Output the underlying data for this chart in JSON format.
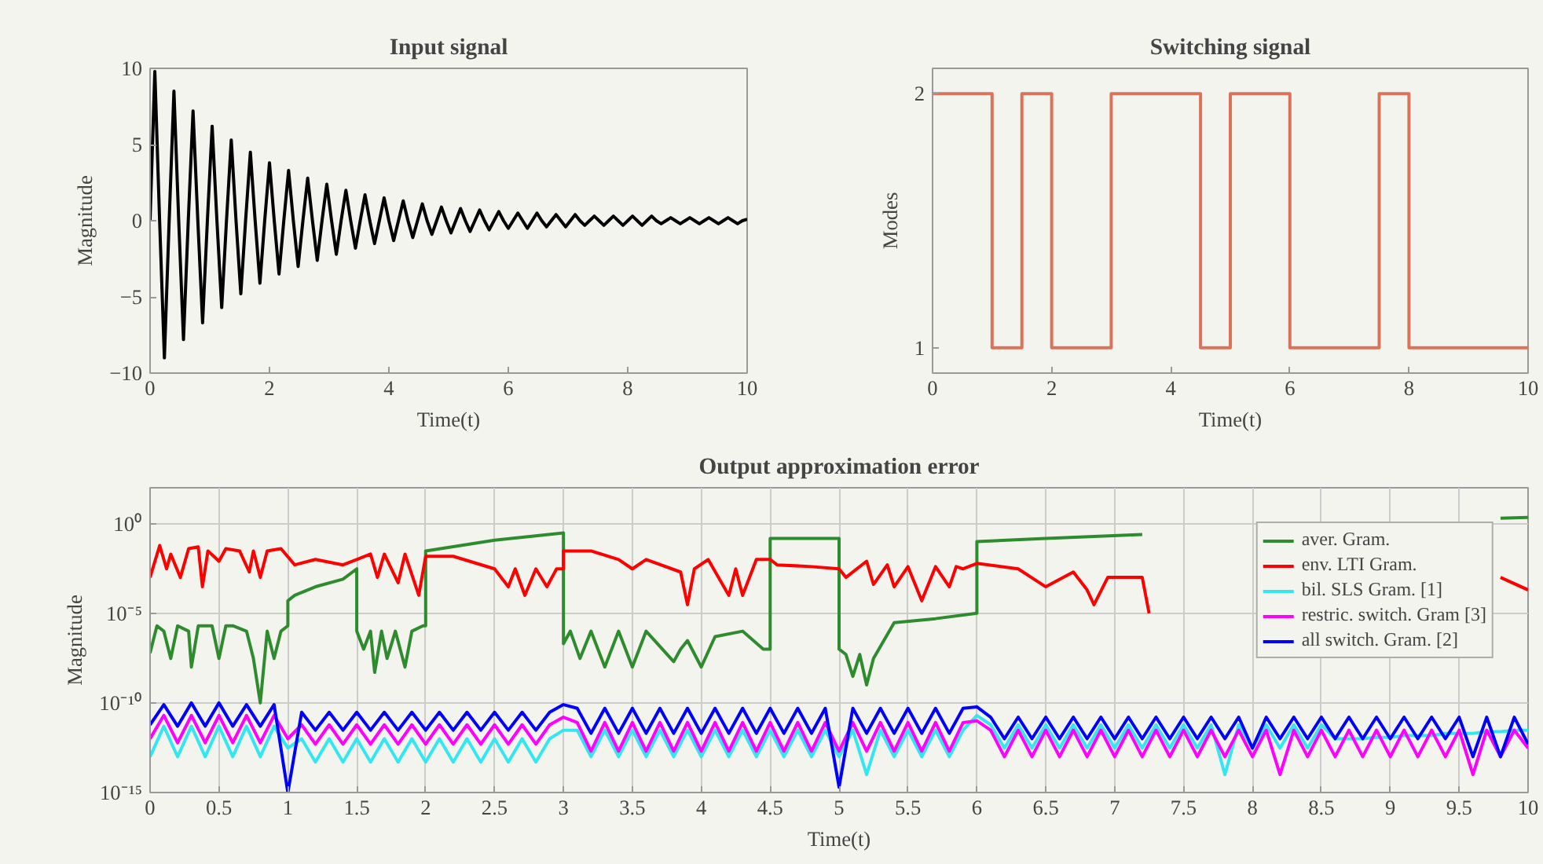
{
  "chart_data": [
    {
      "type": "line",
      "title": "Input signal",
      "xlabel": "Time(t)",
      "ylabel": "Magnitude",
      "xlim": [
        0,
        10
      ],
      "ylim": [
        -10,
        10
      ],
      "xticks": [
        0,
        2,
        4,
        6,
        8,
        10
      ],
      "yticks": [
        {
          "value": -10,
          "label": "−10"
        },
        {
          "value": -5,
          "label": "−5"
        },
        0,
        5,
        10
      ],
      "grid": false,
      "legend": false,
      "x": [
        0,
        0.08,
        0.16,
        0.24,
        0.32,
        0.4,
        0.48,
        0.56,
        0.64,
        0.72,
        0.8,
        0.88,
        0.96,
        1.04,
        1.12,
        1.2,
        1.28,
        1.36,
        1.44,
        1.52,
        1.6,
        1.68,
        1.76,
        1.84,
        1.92,
        2,
        2.08,
        2.16,
        2.24,
        2.32,
        2.4,
        2.48,
        2.56,
        2.64,
        2.72,
        2.8,
        2.88,
        2.96,
        3.04,
        3.12,
        3.2,
        3.28,
        3.36,
        3.44,
        3.52,
        3.6,
        3.68,
        3.76,
        3.84,
        3.92,
        4,
        4.08,
        4.16,
        4.24,
        4.32,
        4.4,
        4.48,
        4.56,
        4.64,
        4.72,
        4.8,
        4.88,
        4.96,
        5.04,
        5.12,
        5.2,
        5.28,
        5.36,
        5.44,
        5.52,
        5.6,
        5.68,
        5.76,
        5.84,
        5.92,
        6,
        6.08,
        6.16,
        6.24,
        6.32,
        6.4,
        6.48,
        6.56,
        6.64,
        6.72,
        6.8,
        6.88,
        6.96,
        7.04,
        7.12,
        7.2,
        7.28,
        7.36,
        7.44,
        7.52,
        7.6,
        7.68,
        7.76,
        7.84,
        7.92,
        8,
        8.08,
        8.16,
        8.24,
        8.32,
        8.4,
        8.48,
        8.56,
        8.64,
        8.72,
        8.8,
        8.88,
        8.96,
        9.04,
        9.12,
        9.2,
        9.28,
        9.36,
        9.44,
        9.52,
        9.6,
        9.68,
        9.76,
        9.84,
        9.92,
        10
      ],
      "series": [
        {
          "color": "#000000",
          "values": [
            0,
            9.8,
            0,
            -9.0,
            0,
            8.5,
            0,
            -7.8,
            0,
            7.2,
            0,
            -6.7,
            0,
            6.2,
            0,
            -5.7,
            0,
            5.3,
            0,
            -4.8,
            0,
            4.5,
            0,
            -4.1,
            0,
            3.8,
            0,
            -3.5,
            0,
            3.3,
            0,
            -3.0,
            0,
            2.8,
            0,
            -2.6,
            0,
            2.4,
            0,
            -2.2,
            0,
            2.0,
            0,
            -1.8,
            0,
            1.7,
            0,
            -1.5,
            0,
            1.5,
            0,
            -1.3,
            0,
            1.3,
            0,
            -1.1,
            0,
            1.1,
            0,
            -0.9,
            0,
            0.9,
            0,
            -0.8,
            0,
            0.8,
            0,
            -0.7,
            0,
            0.7,
            0,
            -0.6,
            0,
            0.6,
            0,
            -0.5,
            0,
            0.5,
            0,
            -0.5,
            0,
            0.5,
            0,
            -0.4,
            0,
            0.4,
            0,
            -0.4,
            0,
            0.4,
            0,
            -0.3,
            0,
            0.3,
            0,
            -0.3,
            0,
            0.3,
            0,
            -0.3,
            0,
            0.3,
            0,
            -0.3,
            0,
            0.3,
            0,
            -0.2,
            0,
            0.2,
            0,
            -0.2,
            0,
            0.2,
            0,
            -0.2,
            0,
            0.2,
            0,
            -0.2,
            0,
            0.2,
            0,
            -0.2,
            0,
            0.1
          ]
        }
      ]
    },
    {
      "type": "step",
      "title": "Switching signal",
      "xlabel": "Time(t)",
      "ylabel": "Modes",
      "xlim": [
        0,
        10
      ],
      "ylim": [
        0.9,
        2.1
      ],
      "xticks": [
        0,
        2,
        4,
        6,
        8,
        10
      ],
      "yticks": [
        1,
        2
      ],
      "grid": false,
      "legend": false,
      "x": [
        0,
        1,
        1.5,
        2,
        3,
        4.5,
        5,
        6,
        7.5,
        8,
        10
      ],
      "series": [
        {
          "color": "#d9735a",
          "values": [
            2,
            1,
            2,
            1,
            2,
            1,
            2,
            1,
            2,
            1,
            1
          ]
        }
      ]
    },
    {
      "type": "line",
      "title": "Output approximation error",
      "xlabel": "Time(t)",
      "ylabel": "Magnitude",
      "log": "y",
      "xlim": [
        0,
        10
      ],
      "ylim": [
        1e-15,
        100
      ],
      "xticks": [
        0,
        0.5,
        1,
        1.5,
        2,
        2.5,
        3,
        3.5,
        4,
        4.5,
        5,
        5.5,
        6,
        6.5,
        7,
        7.5,
        8,
        8.5,
        9,
        9.5,
        10
      ],
      "yticks": [
        {
          "value": 1e-15,
          "label": "10⁻¹⁵"
        },
        {
          "value": 1e-10,
          "label": "10⁻¹⁰"
        },
        {
          "value": 1e-05,
          "label": "10⁻⁵"
        },
        {
          "value": 1,
          "label": "10⁰"
        }
      ],
      "grid": true,
      "legend": "top right",
      "x": [
        0,
        0.1,
        0.2,
        0.3,
        0.4,
        0.5,
        0.6,
        0.7,
        0.8,
        0.9,
        1,
        1.1,
        1.2,
        1.3,
        1.4,
        1.5,
        1.6,
        1.7,
        1.8,
        1.9,
        2,
        2.1,
        2.2,
        2.3,
        2.4,
        2.5,
        2.6,
        2.7,
        2.8,
        2.9,
        3,
        3.1,
        3.2,
        3.3,
        3.4,
        3.5,
        3.6,
        3.7,
        3.8,
        3.9,
        4,
        4.1,
        4.2,
        4.3,
        4.4,
        4.5,
        4.6,
        4.7,
        4.8,
        4.9,
        5,
        5.1,
        5.2,
        5.3,
        5.4,
        5.5,
        5.6,
        5.7,
        5.8,
        5.9,
        6,
        6.1,
        6.2,
        6.3,
        6.4,
        6.5,
        6.6,
        6.7,
        6.8,
        6.9,
        7,
        7.1,
        7.2,
        7.3,
        7.4,
        7.5,
        7.6,
        7.7,
        7.8,
        7.9,
        8,
        8.1,
        8.2,
        8.3,
        8.4,
        8.5,
        8.6,
        8.7,
        8.8,
        8.9,
        9,
        9.1,
        9.2,
        9.3,
        9.4,
        9.5,
        9.6,
        9.7,
        9.8,
        9.9,
        10
      ],
      "series": [
        {
          "name": "aver. Gram.",
          "color": "#2e8b2e",
          "x": [
            0,
            0.05,
            0.1,
            0.15,
            0.2,
            0.28,
            0.3,
            0.35,
            0.45,
            0.5,
            0.55,
            0.6,
            0.7,
            0.75,
            0.8,
            0.85,
            0.9,
            0.95,
            1.0,
            1.0,
            1.05,
            1.2,
            1.4,
            1.5,
            1.5,
            1.55,
            1.6,
            1.63,
            1.68,
            1.72,
            1.78,
            1.85,
            1.9,
            1.98,
            2.0,
            2.0,
            2.5,
            3.0,
            3.0,
            3.05,
            3.12,
            3.2,
            3.3,
            3.4,
            3.5,
            3.6,
            3.8,
            3.85,
            3.9,
            4.0,
            4.1,
            4.3,
            4.45,
            4.5,
            4.5,
            5.0,
            5.0,
            5.05,
            5.1,
            5.15,
            5.2,
            5.25,
            5.4,
            5.7,
            6.0,
            6.0,
            6.5,
            7.2,
            8.5,
            9.8,
            10
          ],
          "values": [
            6e-08,
            2e-06,
            1e-06,
            3e-08,
            2e-06,
            1e-06,
            1e-08,
            2e-06,
            2e-06,
            3e-08,
            2e-06,
            2e-06,
            1e-06,
            3e-08,
            1e-10,
            1e-06,
            3e-08,
            1e-06,
            2e-06,
            5e-05,
            0.0001,
            0.0003,
            0.0008,
            0.003,
            1e-06,
            1e-07,
            1e-06,
            5e-09,
            1e-06,
            3e-08,
            1e-06,
            1e-08,
            1e-06,
            2e-06,
            2e-06,
            0.03,
            0.12,
            0.3,
            2e-07,
            1e-06,
            3e-08,
            1e-06,
            1e-08,
            1e-06,
            1e-08,
            1e-06,
            2e-08,
            1e-07,
            3e-07,
            1e-08,
            5e-07,
            1e-06,
            1e-07,
            1e-07,
            0.15,
            0.15,
            1e-07,
            5e-08,
            3e-09,
            5e-08,
            1e-09,
            3e-08,
            3e-06,
            5e-06,
            1e-05,
            0.1,
            0.15,
            0.25,
            null,
            2,
            2.2
          ]
        },
        {
          "name": "env. LTI Gram.",
          "color": "#ff0000",
          "x": [
            0,
            0.07,
            0.12,
            0.15,
            0.22,
            0.28,
            0.35,
            0.38,
            0.42,
            0.5,
            0.55,
            0.65,
            0.72,
            0.75,
            0.8,
            0.85,
            0.95,
            1.05,
            1.2,
            1.4,
            1.5,
            1.6,
            1.65,
            1.7,
            1.8,
            1.85,
            1.95,
            2.0,
            2.2,
            2.5,
            2.6,
            2.65,
            2.72,
            2.8,
            2.88,
            2.95,
            3.0,
            3.0,
            3.2,
            3.4,
            3.5,
            3.6,
            3.85,
            3.9,
            3.95,
            4.05,
            4.2,
            4.25,
            4.3,
            4.4,
            4.5,
            4.55,
            4.8,
            5.0,
            5.05,
            5.2,
            5.25,
            5.35,
            5.4,
            5.5,
            5.6,
            5.7,
            5.8,
            5.85,
            5.9,
            6.0,
            6.3,
            6.5,
            6.7,
            6.8,
            6.85,
            6.95,
            7.2,
            7.25,
            8.5,
            9.8,
            10
          ],
          "values": [
            0.001,
            0.06,
            0.003,
            0.02,
            0.001,
            0.04,
            0.05,
            0.0003,
            0.03,
            0.008,
            0.04,
            0.03,
            0.002,
            0.03,
            0.001,
            0.03,
            0.04,
            0.005,
            0.01,
            0.005,
            0.01,
            0.02,
            0.001,
            0.02,
            0.0005,
            0.02,
            0.0001,
            0.015,
            0.015,
            0.003,
            0.0003,
            0.003,
            0.0001,
            0.003,
            0.0003,
            0.003,
            0.003,
            0.03,
            0.03,
            0.01,
            0.003,
            0.01,
            0.002,
            3e-05,
            0.003,
            0.01,
            0.0001,
            0.003,
            0.0001,
            0.01,
            0.01,
            0.005,
            0.004,
            0.003,
            0.001,
            0.008,
            0.0004,
            0.005,
            0.0003,
            0.004,
            5e-05,
            0.004,
            0.0003,
            0.004,
            0.003,
            0.006,
            0.003,
            0.0003,
            0.002,
            0.0002,
            3e-05,
            0.001,
            0.001,
            1e-05,
            null,
            0.001,
            0.0002
          ]
        },
        {
          "name": "bil. SLS Gram. [1]",
          "color": "#33e6f0",
          "values": [
            1e-13,
            5e-12,
            1e-13,
            5e-12,
            1e-13,
            5e-12,
            1e-13,
            5e-12,
            1e-13,
            5e-12,
            3e-13,
            1e-12,
            5e-14,
            1e-12,
            5e-14,
            1e-12,
            5e-14,
            1e-12,
            5e-14,
            1e-12,
            5e-14,
            1e-12,
            5e-14,
            1e-12,
            5e-14,
            1e-12,
            5e-14,
            1e-12,
            5e-14,
            1e-12,
            3e-12,
            3e-12,
            1e-13,
            3e-12,
            1e-13,
            3e-12,
            1e-13,
            3e-12,
            1e-13,
            3e-12,
            1e-13,
            3e-12,
            1e-13,
            3e-12,
            1e-13,
            3e-12,
            1e-13,
            3e-12,
            1e-13,
            3e-12,
            1e-13,
            3e-12,
            1e-14,
            3e-12,
            1e-13,
            3e-12,
            1e-13,
            3e-12,
            1e-13,
            3e-12,
            2e-11,
            6e-12,
            3e-13,
            6e-12,
            3e-13,
            6e-12,
            3e-13,
            6e-12,
            3e-13,
            6e-12,
            3e-13,
            6e-12,
            3e-13,
            6e-12,
            3e-13,
            6e-12,
            3e-13,
            6e-12,
            1e-14,
            6e-12,
            3e-13,
            6e-12,
            3e-13,
            6e-12,
            3e-13,
            6e-12,
            1e-12,
            1e-12,
            1e-12,
            1.2e-12,
            1.2e-12,
            1.5e-12,
            1.5e-12,
            1.5e-12,
            2e-12,
            2e-12,
            2e-12,
            2.5e-12,
            2.5e-12,
            3e-12,
            3e-12
          ]
        },
        {
          "name": "restric. switch. Gram [3]",
          "color": "#ff00ff",
          "values": [
            1e-12,
            2e-11,
            6e-13,
            2e-11,
            6e-13,
            2e-11,
            6e-13,
            2e-11,
            6e-13,
            2e-11,
            1e-12,
            6e-12,
            5e-13,
            6e-12,
            5e-13,
            6e-12,
            5e-13,
            6e-12,
            5e-13,
            6e-12,
            5e-13,
            6e-12,
            5e-13,
            6e-12,
            5e-13,
            6e-12,
            5e-13,
            6e-12,
            5e-13,
            6e-12,
            1.6e-11,
            8e-12,
            2e-13,
            8e-12,
            2e-13,
            8e-12,
            2e-13,
            8e-12,
            2e-13,
            8e-12,
            2e-13,
            8e-12,
            2e-13,
            8e-12,
            2e-13,
            8e-12,
            2e-13,
            8e-12,
            2e-13,
            8e-12,
            2e-13,
            8e-12,
            2e-13,
            8e-12,
            2e-13,
            8e-12,
            2e-13,
            8e-12,
            2e-13,
            8e-12,
            1e-11,
            3e-12,
            1e-13,
            3e-12,
            1e-13,
            3e-12,
            1e-13,
            3e-12,
            1e-13,
            3e-12,
            1e-13,
            3e-12,
            1e-13,
            3e-12,
            1e-13,
            3e-12,
            1e-13,
            3e-12,
            1e-13,
            3e-12,
            1e-13,
            3e-12,
            1e-14,
            3e-12,
            1e-13,
            3e-12,
            1e-13,
            3e-12,
            1e-13,
            3e-12,
            1e-13,
            3e-12,
            1e-13,
            3e-12,
            1e-13,
            3e-12,
            1e-14,
            3e-12,
            1e-13,
            3e-12,
            3e-13
          ]
        },
        {
          "name": "all switch. Gram. [2]",
          "color": "#0000ff",
          "values": [
            6e-12,
            8e-11,
            5e-12,
            1e-10,
            5e-12,
            1e-10,
            5e-12,
            8e-11,
            5e-12,
            8e-11,
            1e-15,
            3e-11,
            3e-12,
            3e-11,
            3e-12,
            3e-11,
            3e-12,
            3e-11,
            3e-12,
            3e-11,
            3e-12,
            3e-11,
            3e-12,
            3e-11,
            3e-12,
            3e-11,
            3e-12,
            3e-11,
            3e-12,
            3e-11,
            8e-11,
            5e-11,
            2e-12,
            5e-11,
            2e-12,
            5e-11,
            2e-12,
            5e-11,
            2e-12,
            5e-11,
            2e-12,
            5e-11,
            2e-12,
            5e-11,
            2e-12,
            5e-11,
            2e-12,
            5e-11,
            2e-12,
            5e-11,
            2e-15,
            5e-11,
            2e-12,
            5e-11,
            2e-12,
            5e-11,
            2e-12,
            5e-11,
            2e-12,
            5e-11,
            6e-11,
            1.6e-11,
            1e-12,
            1.6e-11,
            1e-12,
            1.6e-11,
            1e-12,
            1.6e-11,
            1e-12,
            1.6e-11,
            1e-12,
            1.6e-11,
            1e-12,
            1.6e-11,
            1e-12,
            1.6e-11,
            1e-12,
            1.6e-11,
            1e-12,
            1.6e-11,
            3e-13,
            1.6e-11,
            1e-12,
            1.6e-11,
            1e-12,
            1.6e-11,
            1e-12,
            1.6e-11,
            1e-12,
            1.6e-11,
            1e-12,
            1.6e-11,
            1e-12,
            1.6e-11,
            1e-12,
            1.6e-11,
            1e-13,
            1.6e-11,
            1e-13,
            1.6e-11,
            5e-13
          ]
        }
      ]
    }
  ]
}
